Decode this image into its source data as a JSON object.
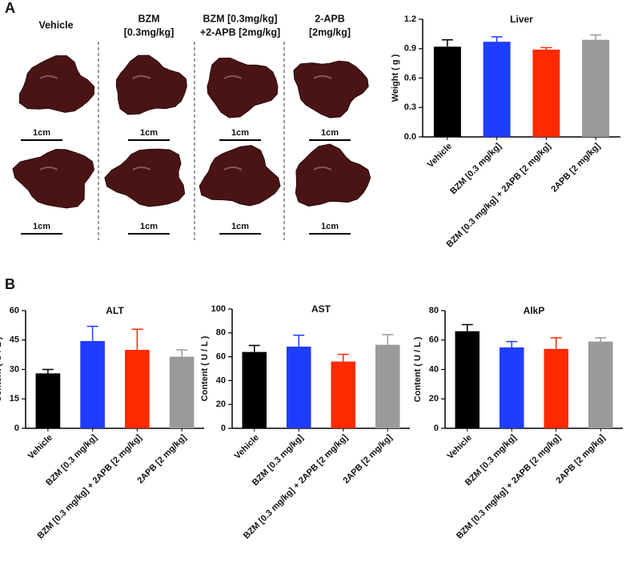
{
  "panels": [
    "A",
    "B"
  ],
  "photos": {
    "headers": [
      [
        "Vehicle"
      ],
      [
        "BZM",
        "[0.3mg/kg]"
      ],
      [
        "BZM [0.3mg/kg]",
        "+2-APB [2mg/kg]"
      ],
      [
        "2-APB",
        "[2mg/kg]"
      ]
    ],
    "scale_labels": [
      "1cm",
      "1cm",
      "1cm",
      "1cm",
      "1cm",
      "1cm",
      "1cm",
      "1cm"
    ]
  },
  "chart_data": [
    {
      "type": "bar",
      "title": "Liver",
      "y_label": "Weight ( g )",
      "categories": [
        "Vehicle",
        "BZM [0.3 mg/kg]",
        "BZM [0.3 mg/kg] + 2APB [2 mg/kg]",
        "2APB [2 mg/kg]"
      ],
      "values": [
        0.92,
        0.97,
        0.89,
        0.99
      ],
      "errors": [
        0.07,
        0.05,
        0.02,
        0.05
      ],
      "colors": [
        "#000000",
        "#1f3dff",
        "#ff2a00",
        "#9a9a9a"
      ],
      "ylim": [
        0,
        1.2
      ],
      "yticks": [
        {
          "value": 0,
          "label": "0.0"
        },
        0.3,
        0.6,
        0.9,
        1.2
      ]
    },
    {
      "type": "bar",
      "title": "ALT",
      "y_label": "Content ( U / L )",
      "categories": [
        "Vehicle",
        "BZM [0.3 mg/kg]",
        "BZM [0.3 mg/kg] + 2APB [2 mg/kg]",
        "2APB [2 mg/kg]"
      ],
      "values": [
        28,
        44.5,
        40,
        36.5
      ],
      "errors": [
        2,
        7.5,
        10.5,
        3.5
      ],
      "colors": [
        "#000000",
        "#1f3dff",
        "#ff2a00",
        "#9a9a9a"
      ],
      "ylim": [
        0,
        60
      ],
      "yticks": [
        0,
        15,
        30,
        45,
        60
      ]
    },
    {
      "type": "bar",
      "title": "AST",
      "y_label": "Content ( U / L )",
      "categories": [
        "Vehicle",
        "BZM [0.3 mg/kg]",
        "BZM [0.3 mg/kg] + 2APB [2 mg/kg]",
        "2APB [2 mg/kg]"
      ],
      "values": [
        64,
        68.5,
        56,
        70
      ],
      "errors": [
        5.5,
        9.5,
        6,
        8.5
      ],
      "colors": [
        "#000000",
        "#1f3dff",
        "#ff2a00",
        "#9a9a9a"
      ],
      "ylim": [
        0,
        100
      ],
      "yticks": [
        0,
        20,
        40,
        60,
        80,
        100
      ]
    },
    {
      "type": "bar",
      "title": "AlkP",
      "y_label": "Content ( U / L )",
      "categories": [
        "Vehicle",
        "BZM [0.3 mg/kg]",
        "BZM [0.3 mg/kg] + 2APB [2 mg/kg]",
        "2APB [2 mg/kg]"
      ],
      "values": [
        66,
        55,
        54,
        59
      ],
      "errors": [
        4.5,
        4,
        7.5,
        2.5
      ],
      "colors": [
        "#000000",
        "#1f3dff",
        "#ff2a00",
        "#9a9a9a"
      ],
      "ylim": [
        0,
        80
      ],
      "yticks": [
        0,
        20,
        40,
        60,
        80
      ]
    }
  ]
}
